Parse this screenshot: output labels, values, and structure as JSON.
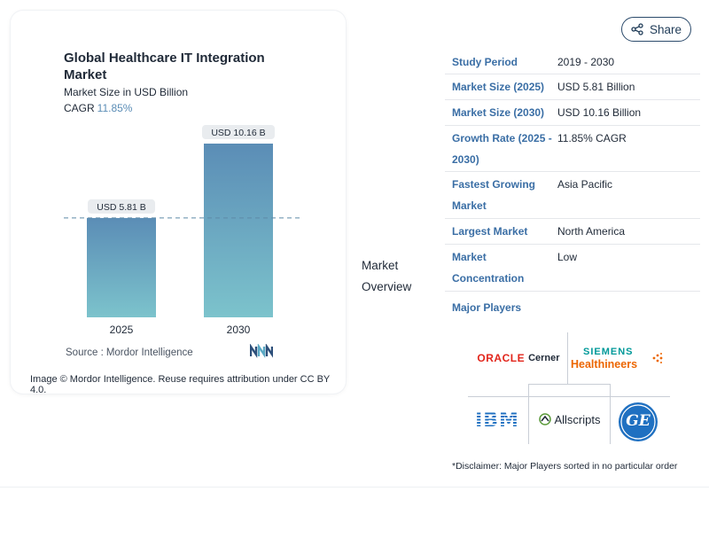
{
  "chart": {
    "title": "Global Healthcare IT Integration Market",
    "subtitle": "Market Size in USD Billion",
    "cagr_label": "CAGR",
    "cagr_value": "11.85%",
    "source_label": "Source :",
    "source_value": "Mordor Intelligence",
    "attribution": "Image © Mordor Intelligence. Reuse requires attribution under CC BY 4.0."
  },
  "chart_data": {
    "type": "bar",
    "categories": [
      "2025",
      "2030"
    ],
    "values": [
      5.81,
      10.16
    ],
    "value_labels": [
      "USD 5.81 B",
      "USD 10.16 B"
    ],
    "title": "Global Healthcare IT Integration Market",
    "ylabel": "Market Size in USD Billion",
    "ylim": [
      0,
      10.16
    ],
    "grid": false,
    "reference_line": "dashed line at 2025 value"
  },
  "share": {
    "label": "Share",
    "icon": "share-icon"
  },
  "overview_label": "Market Overview",
  "stats": [
    {
      "key": "Study Period",
      "value": "2019 - 2030"
    },
    {
      "key": "Market Size (2025)",
      "value": "USD 5.81 Billion"
    },
    {
      "key": "Market Size (2030)",
      "value": "USD 10.16 Billion"
    },
    {
      "key": "Growth Rate (2025 - 2030)",
      "value": "11.85% CAGR"
    },
    {
      "key": "Fastest Growing Market",
      "value": "Asia Pacific"
    },
    {
      "key": "Largest Market",
      "value": "North America"
    },
    {
      "key": "Market Concentration",
      "value": "Low"
    }
  ],
  "major_players_label": "Major Players",
  "players": {
    "oracle": "ORACLE",
    "cerner": "Cerner",
    "siemens_top": "SIEMENS",
    "siemens_bottom": "Healthineers",
    "ibm": "IBM",
    "allscripts": "Allscripts",
    "ge": "GE"
  },
  "colors": {
    "accent": "#3a6ea5",
    "bar_top": "#5b8db6",
    "bar_bottom": "#7cc3cc",
    "oracle_red": "#e2261c",
    "siemens_teal": "#009999",
    "healthineers_orange": "#ec6602",
    "ibm_blue": "#1f70c1",
    "ge_blue": "#1f70c1"
  },
  "disclaimer": "*Disclaimer: Major Players sorted in no particular order"
}
